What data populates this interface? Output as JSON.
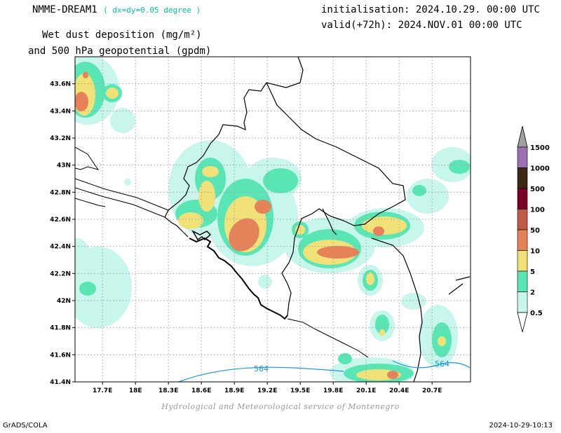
{
  "header": {
    "model": "NMME-DREAM1",
    "resolution": "( dx=dy=0.05 degree )",
    "variable_line1": "Wet dust deposition (mg/m²)",
    "variable_line2": "and 500 hPa geopotential (gpdm)",
    "init": "initialisation: 2024.10.29. 00:00 UTC",
    "valid": "valid(+72h): 2024.NOV.01 00:00 UTC"
  },
  "footer": {
    "credit": "Hydrological and Meteorological service of Montenegro",
    "software": "GrADS/COLA",
    "timestamp": "2024-10-29-10:13"
  },
  "map": {
    "lon_range": [
      17.45,
      21.05
    ],
    "lat_range": [
      41.4,
      43.8
    ],
    "x_ticks": [
      "17.7E",
      "18E",
      "18.3E",
      "18.6E",
      "18.9E",
      "19.2E",
      "19.5E",
      "19.8E",
      "20.1E",
      "20.4E",
      "20.7E"
    ],
    "y_ticks": [
      "43.6N",
      "43.4N",
      "43.2N",
      "43N",
      "42.8N",
      "42.6N",
      "42.4N",
      "42.2N",
      "42N",
      "41.8N",
      "41.6N",
      "41.4N"
    ],
    "contour_label": "564",
    "contour_color": "#1e96dc",
    "grid": true
  },
  "legend": {
    "levels": [
      "1500",
      "1000",
      "500",
      "100",
      "50",
      "10",
      "5",
      "2",
      "0.5"
    ],
    "colors": [
      "#9b6fb0",
      "#3c2814",
      "#7d0028",
      "#be5a46",
      "#e6825a",
      "#f0e178",
      "#5ae6b4",
      "#c8f5ec"
    ],
    "top_color": "#a0a0a0"
  }
}
